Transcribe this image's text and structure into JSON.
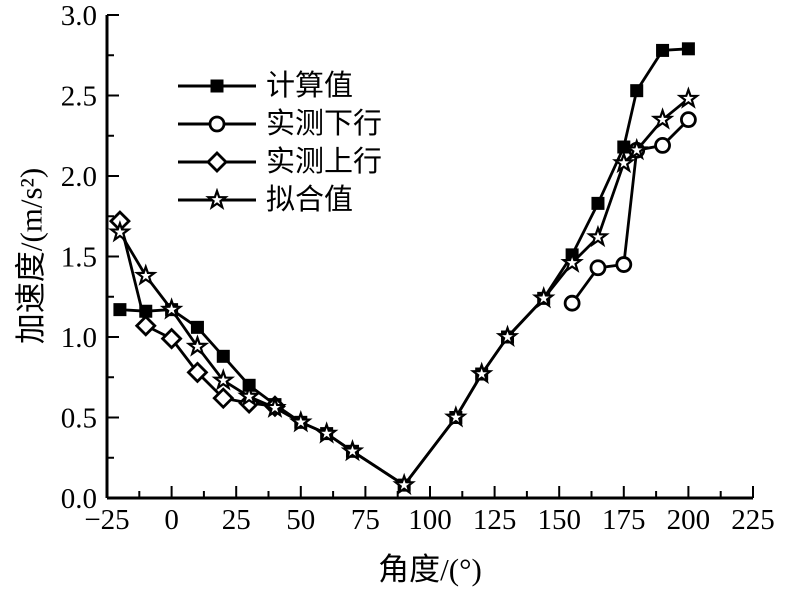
{
  "chart_data": {
    "type": "line",
    "title": "",
    "xlabel": "角度/(°)",
    "ylabel": "加速度/(m/s²)",
    "xlim": [
      -25,
      225
    ],
    "ylim": [
      0.0,
      3.0
    ],
    "x_ticks": [
      -25,
      0,
      25,
      50,
      75,
      100,
      125,
      150,
      175,
      200,
      225
    ],
    "x_tick_labels": [
      "−25",
      "0",
      "25",
      "50",
      "75",
      "100",
      "125",
      "150",
      "175",
      "200",
      "225"
    ],
    "x_minor_step": 12.5,
    "y_ticks": [
      0.0,
      0.5,
      1.0,
      1.5,
      2.0,
      2.5,
      3.0
    ],
    "y_tick_labels": [
      "0.0",
      "0.5",
      "1.0",
      "1.5",
      "2.0",
      "2.5",
      "3.0"
    ],
    "y_minor_step": 0.25,
    "grid": false,
    "legend_position": "upper-left-inside",
    "line_color": "#000000",
    "background": "#ffffff",
    "series": [
      {
        "name": "计算值",
        "marker": "filled-square",
        "x": [
          -20,
          -10,
          0,
          10,
          20,
          30,
          40,
          50,
          60,
          70,
          90,
          110,
          120,
          130,
          144,
          155,
          165,
          175,
          180,
          190,
          200
        ],
        "y": [
          1.17,
          1.16,
          1.17,
          1.06,
          0.88,
          0.7,
          0.58,
          0.47,
          0.4,
          0.29,
          0.08,
          0.5,
          0.77,
          1.0,
          1.24,
          1.51,
          1.83,
          2.18,
          2.53,
          2.78,
          2.79
        ]
      },
      {
        "name": "实测下行",
        "marker": "open-circle",
        "x": [
          155,
          165,
          175,
          180,
          190,
          200
        ],
        "y": [
          1.21,
          1.43,
          1.45,
          2.16,
          2.19,
          2.35
        ]
      },
      {
        "name": "实测上行",
        "marker": "open-diamond",
        "x": [
          -20,
          -10,
          0,
          10,
          20,
          30,
          40
        ],
        "y": [
          1.72,
          1.07,
          0.99,
          0.78,
          0.62,
          0.59,
          0.57
        ]
      },
      {
        "name": "拟合值",
        "marker": "open-star",
        "x": [
          -20,
          -10,
          0,
          10,
          20,
          30,
          40,
          50,
          60,
          70,
          90,
          110,
          120,
          130,
          144,
          155,
          165,
          175,
          180,
          190,
          200
        ],
        "y": [
          1.65,
          1.38,
          1.17,
          0.94,
          0.73,
          0.63,
          0.56,
          0.47,
          0.4,
          0.29,
          0.08,
          0.5,
          0.77,
          1.0,
          1.24,
          1.46,
          1.62,
          2.08,
          2.16,
          2.35,
          2.48
        ]
      }
    ]
  }
}
